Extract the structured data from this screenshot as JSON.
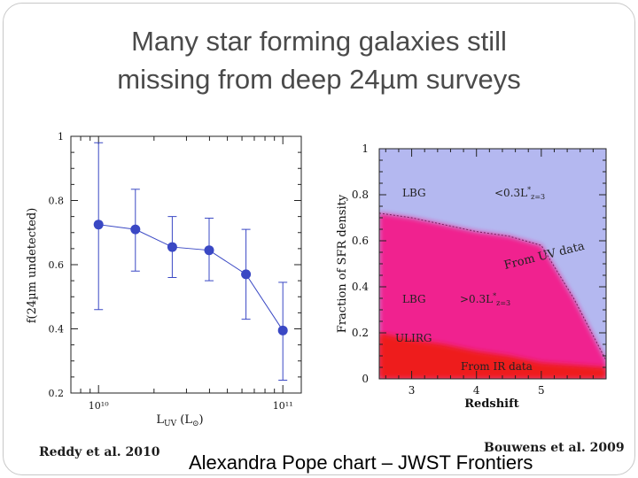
{
  "slide": {
    "title_line1": "Many star forming galaxies still",
    "title_line2": "missing from deep 24µm surveys",
    "credit_left": "Reddy et al. 2010",
    "credit_right": "Bouwens et al. 2009",
    "footer": "Alexandra Pope chart – JWST Frontiers"
  },
  "chart_data": [
    {
      "type": "scatter",
      "ylabel": "f(24µm undetected)",
      "xlabel": "L_UV (L⊙)",
      "xscale": "log",
      "xlim_log10": [
        9.85,
        11.1
      ],
      "ylim": [
        0.2,
        1.0
      ],
      "x_tick_labels": [
        "10¹⁰",
        "10¹¹"
      ],
      "y_tick_labels": [
        "0.2",
        "0.4",
        "0.6",
        "0.8",
        "1"
      ],
      "grid": false,
      "series": [
        {
          "log10_x": [
            10.0,
            10.2,
            10.4,
            10.6,
            10.8,
            11.0
          ],
          "y": [
            0.725,
            0.71,
            0.655,
            0.645,
            0.57,
            0.395
          ],
          "yerr_low": [
            0.46,
            0.58,
            0.56,
            0.55,
            0.43,
            0.24
          ],
          "yerr_high": [
            0.98,
            0.835,
            0.75,
            0.745,
            0.71,
            0.545
          ],
          "color": "#3a48c4"
        }
      ]
    },
    {
      "type": "area",
      "ylabel": "Fraction of SFR density",
      "xlabel": "Redshift",
      "xlim": [
        2.5,
        6.0
      ],
      "ylim": [
        0,
        1
      ],
      "x_tick_labels": [
        "3",
        "4",
        "5"
      ],
      "y_tick_labels": [
        "0",
        "0.2",
        "0.4",
        "0.6",
        "0.8",
        "1"
      ],
      "grid": false,
      "x": [
        2.5,
        3.0,
        3.5,
        4.0,
        4.5,
        5.0,
        5.5,
        6.0
      ],
      "boundaries": {
        "ulirg_top": [
          0.2,
          0.17,
          0.15,
          0.12,
          0.1,
          0.07,
          0.06,
          0.05
        ],
        "lbg_bright_top": [
          0.72,
          0.7,
          0.67,
          0.64,
          0.62,
          0.58,
          0.35,
          0.08
        ]
      },
      "region_colors": {
        "ulirg": "#ee1a1a",
        "lbg_bright": "#f0208f",
        "lbg_faint": "#b4b8f0"
      },
      "annotations": [
        "LBG",
        "<0.3L*z=3",
        "From UV data",
        "LBG",
        ">0.3L*z=3",
        "ULIRG",
        "From IR data"
      ]
    }
  ]
}
